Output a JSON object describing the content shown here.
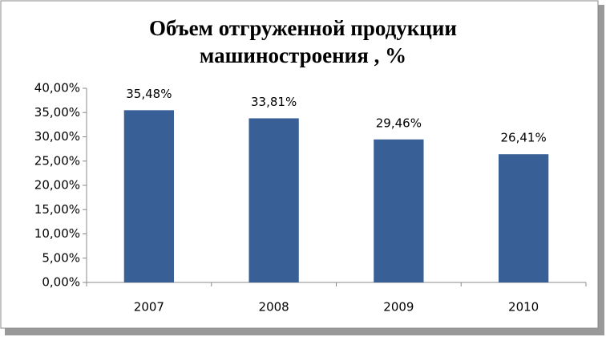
{
  "chart_data": {
    "type": "bar",
    "title": [
      "Объем отгруженной продукции",
      "машиностроения , %"
    ],
    "categories": [
      "2007",
      "2008",
      "2009",
      "2010"
    ],
    "values": [
      35.48,
      33.81,
      29.46,
      26.41
    ],
    "value_labels": [
      "35,48%",
      "33,81%",
      "29,46%",
      "26,41%"
    ],
    "color": "#386096",
    "ylim": [
      0,
      40
    ],
    "yticks": [
      {
        "value": 0,
        "label": "0,00%"
      },
      {
        "value": 5,
        "label": "5,00%"
      },
      {
        "value": 10,
        "label": "10,00%"
      },
      {
        "value": 15,
        "label": "15,00%"
      },
      {
        "value": 20,
        "label": "20,00%"
      },
      {
        "value": 25,
        "label": "25,00%"
      },
      {
        "value": 30,
        "label": "30,00%"
      },
      {
        "value": 35,
        "label": "35,00%"
      },
      {
        "value": 40,
        "label": "40,00%"
      }
    ],
    "grid": false
  }
}
